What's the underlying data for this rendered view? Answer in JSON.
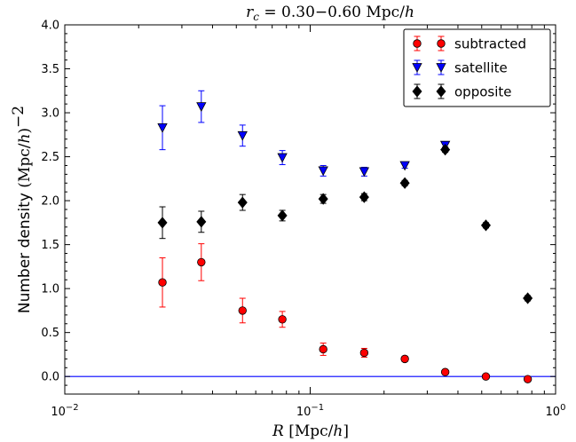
{
  "chart_data": {
    "type": "scatter",
    "title": "r_c = 0.30−0.60 Mpc/h",
    "title_var": "r",
    "title_sub": "c",
    "title_rest": " = 0.30−0.60 Mpc/",
    "title_h": "h",
    "xlabel": "R [Mpc/h]",
    "xlabel_var": "R",
    "xlabel_rest": " [Mpc/",
    "xlabel_h": "h",
    "xlabel_close": "]",
    "ylabel": "Number density (Mpc/h)^−2",
    "ylabel_prefix": "Number density ",
    "ylabel_unit": "(Mpc/",
    "ylabel_h": "h",
    "ylabel_close": ")",
    "ylabel_exp": "−2",
    "xscale": "log",
    "xlim": [
      0.01,
      1
    ],
    "ylim": [
      -0.2,
      4.0
    ],
    "xticks": [
      {
        "value": 0.01,
        "base": "10",
        "exp": "−2"
      },
      {
        "value": 0.1,
        "base": "10",
        "exp": "−1"
      },
      {
        "value": 1,
        "base": "10",
        "exp": "0"
      }
    ],
    "yticks": [
      "0.0",
      "0.5",
      "1.0",
      "1.5",
      "2.0",
      "2.5",
      "3.0",
      "3.5",
      "4.0"
    ],
    "grid": false,
    "legend_position": "top-right",
    "hline": {
      "y": 0.0,
      "color": "#0000ff"
    },
    "series": [
      {
        "name": "subtracted",
        "marker": "circle",
        "color": "#ff0000",
        "errcolor": "#ff0000",
        "x": [
          0.025,
          0.036,
          0.053,
          0.077,
          0.113,
          0.166,
          0.243,
          0.355,
          0.52,
          0.77
        ],
        "y": [
          1.07,
          1.3,
          0.75,
          0.65,
          0.31,
          0.27,
          0.2,
          0.05,
          0.0,
          -0.03
        ],
        "err": [
          0.28,
          0.21,
          0.14,
          0.09,
          0.07,
          0.05,
          0.03,
          0.02,
          0.02,
          0.02
        ]
      },
      {
        "name": "satellite",
        "marker": "triangle-down",
        "color": "#0000ff",
        "errcolor": "#0000ff",
        "x": [
          0.025,
          0.036,
          0.053,
          0.077,
          0.113,
          0.166,
          0.243,
          0.355
        ],
        "y": [
          2.83,
          3.07,
          2.74,
          2.49,
          2.34,
          2.33,
          2.4,
          2.63
        ],
        "err": [
          0.25,
          0.18,
          0.12,
          0.08,
          0.06,
          0.05,
          0.03,
          0.03
        ]
      },
      {
        "name": "opposite",
        "marker": "diamond",
        "color": "#000000",
        "errcolor": "#000000",
        "x": [
          0.025,
          0.036,
          0.053,
          0.077,
          0.113,
          0.166,
          0.243,
          0.355,
          0.52,
          0.77
        ],
        "y": [
          1.75,
          1.76,
          1.98,
          1.83,
          2.02,
          2.04,
          2.2,
          2.58,
          1.72,
          0.89
        ],
        "err": [
          0.18,
          0.12,
          0.09,
          0.06,
          0.05,
          0.04,
          0.03,
          0.03,
          0.03,
          0.03
        ]
      }
    ]
  }
}
